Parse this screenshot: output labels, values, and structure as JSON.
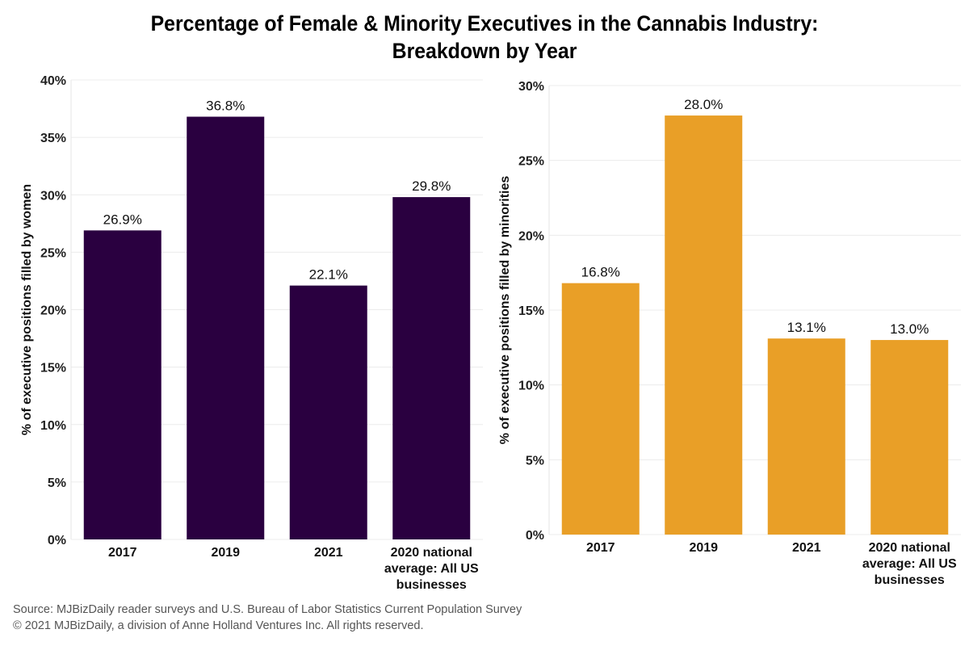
{
  "title": {
    "line1": "Percentage of Female & Minority Executives in the Cannabis Industry:",
    "line2": "Breakdown by Year"
  },
  "footer": {
    "source": "Source: MJBizDaily reader surveys and U.S. Bureau of Labor Statistics Current Population Survey",
    "copyright": "© 2021 MJBizDaily, a division of Anne Holland Ventures Inc. All rights reserved."
  },
  "chart_data": [
    {
      "type": "bar",
      "title": "",
      "ylabel": "% of executive positions filled by women",
      "xlabel": "",
      "categories": [
        [
          "2017"
        ],
        [
          "2019"
        ],
        [
          "2021"
        ],
        [
          "2020 national",
          "average: All US",
          "businesses"
        ]
      ],
      "values": [
        26.9,
        36.8,
        22.1,
        29.8
      ],
      "value_labels": [
        "26.9%",
        "36.8%",
        "22.1%",
        "29.8%"
      ],
      "ylim": [
        0,
        40
      ],
      "yticks": [
        0,
        5,
        10,
        15,
        20,
        25,
        30,
        35,
        40
      ],
      "ytick_labels": [
        "0%",
        "5%",
        "10%",
        "15%",
        "20%",
        "25%",
        "30%",
        "35%",
        "40%"
      ],
      "color": "#2a0040",
      "grid": true
    },
    {
      "type": "bar",
      "title": "",
      "ylabel": "% of executive positions filled by minorities",
      "xlabel": "",
      "categories": [
        [
          "2017"
        ],
        [
          "2019"
        ],
        [
          "2021"
        ],
        [
          "2020 national",
          "average: All US",
          "businesses"
        ]
      ],
      "values": [
        16.8,
        28.0,
        13.1,
        13.0
      ],
      "value_labels": [
        "16.8%",
        "28.0%",
        "13.1%",
        "13.0%"
      ],
      "ylim": [
        0,
        30
      ],
      "yticks": [
        0,
        5,
        10,
        15,
        20,
        25,
        30
      ],
      "ytick_labels": [
        "0%",
        "5%",
        "10%",
        "15%",
        "20%",
        "25%",
        "30%"
      ],
      "color": "#e99f27",
      "grid": true
    }
  ]
}
